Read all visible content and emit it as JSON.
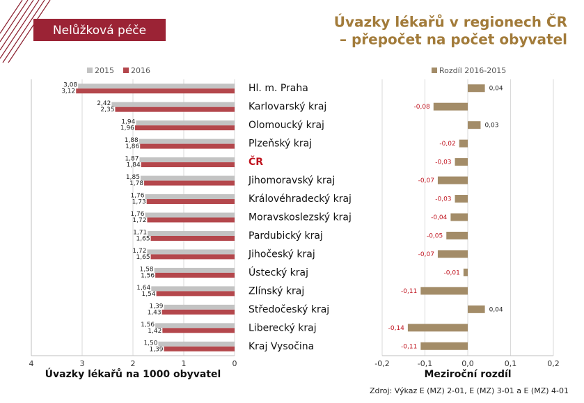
{
  "banner": "Nelůžková péče",
  "title": [
    "Úvazky lékařů v regionech ČR",
    "– přepočet na počet obyvatel"
  ],
  "source": "Zdroj: Výkaz E (MZ) 2-01, E (MZ) 3-01 a E (MZ) 4-01",
  "chart_data": [
    {
      "type": "hbar",
      "xlabel": "Úvazky lékařů na 1000 obyvatel",
      "categories": [
        "Hl. m. Praha",
        "Karlovarský kraj",
        "Olomoucký kraj",
        "Plzeňský kraj",
        "ČR",
        "Jihomoravský kraj",
        "Královéhradecký kraj",
        "Moravskoslezský kraj",
        "Pardubický kraj",
        "Jihočeský kraj",
        "Ústecký kraj",
        "Zlínský kraj",
        "Středočeský kraj",
        "Liberecký kraj",
        "Kraj Vysočina"
      ],
      "highlight_index": 4,
      "highlight_color": "#c0141f",
      "xlim": [
        4,
        0
      ],
      "xticks": [
        4,
        3,
        2,
        1,
        0
      ],
      "grid": true,
      "legend": "top",
      "series": [
        {
          "name": "2015",
          "color": "#c3c3c3",
          "values": [
            3.08,
            2.42,
            1.94,
            1.88,
            1.87,
            1.85,
            1.76,
            1.76,
            1.71,
            1.72,
            1.58,
            1.64,
            1.39,
            1.56,
            1.5
          ],
          "value_labels": [
            "3,08",
            "2,42",
            "1,94",
            "1,88",
            "1,87",
            "1,85",
            "1,76",
            "1,76",
            "1,71",
            "1,72",
            "1,58",
            "1,64",
            "1,39",
            "1,56",
            "1,50"
          ]
        },
        {
          "name": "2016",
          "color": "#b4474c",
          "values": [
            3.12,
            2.35,
            1.96,
            1.86,
            1.84,
            1.78,
            1.73,
            1.72,
            1.65,
            1.65,
            1.56,
            1.54,
            1.43,
            1.42,
            1.39
          ],
          "value_labels": [
            "3,12",
            "2,35",
            "1,96",
            "1,86",
            "1,84",
            "1,78",
            "1,73",
            "1,72",
            "1,65",
            "1,65",
            "1,56",
            "1,54",
            "1,43",
            "1,42",
            "1,39"
          ]
        }
      ]
    },
    {
      "type": "diverging",
      "xlabel": "Meziroční rozdíl",
      "xlim": [
        -0.2,
        0.2
      ],
      "xticks": [
        {
          "value": -0.2,
          "label": "-0,2"
        },
        {
          "value": -0.1,
          "label": "-0,1"
        },
        {
          "value": 0,
          "label": "0,0"
        },
        {
          "value": 0.1,
          "label": "0,1"
        },
        {
          "value": 0.2,
          "label": "0,2"
        }
      ],
      "grid": true,
      "legend": "top",
      "negative_label_color": "#c0141f",
      "series": [
        {
          "name": "Rozdíl 2016-2015",
          "color": "#a38c68",
          "values": [
            0.04,
            -0.08,
            0.03,
            -0.02,
            -0.03,
            -0.07,
            -0.03,
            -0.04,
            -0.05,
            -0.07,
            -0.01,
            -0.11,
            0.04,
            -0.14,
            -0.11
          ],
          "value_labels": [
            "0,04",
            "-0,08",
            "0,03",
            "-0,02",
            "-0,03",
            "-0,07",
            "-0,03",
            "-0,04",
            "-0,05",
            "-0,07",
            "-0,01",
            "-0,11",
            "0,04",
            "-0,14",
            "-0,11"
          ]
        }
      ]
    }
  ]
}
